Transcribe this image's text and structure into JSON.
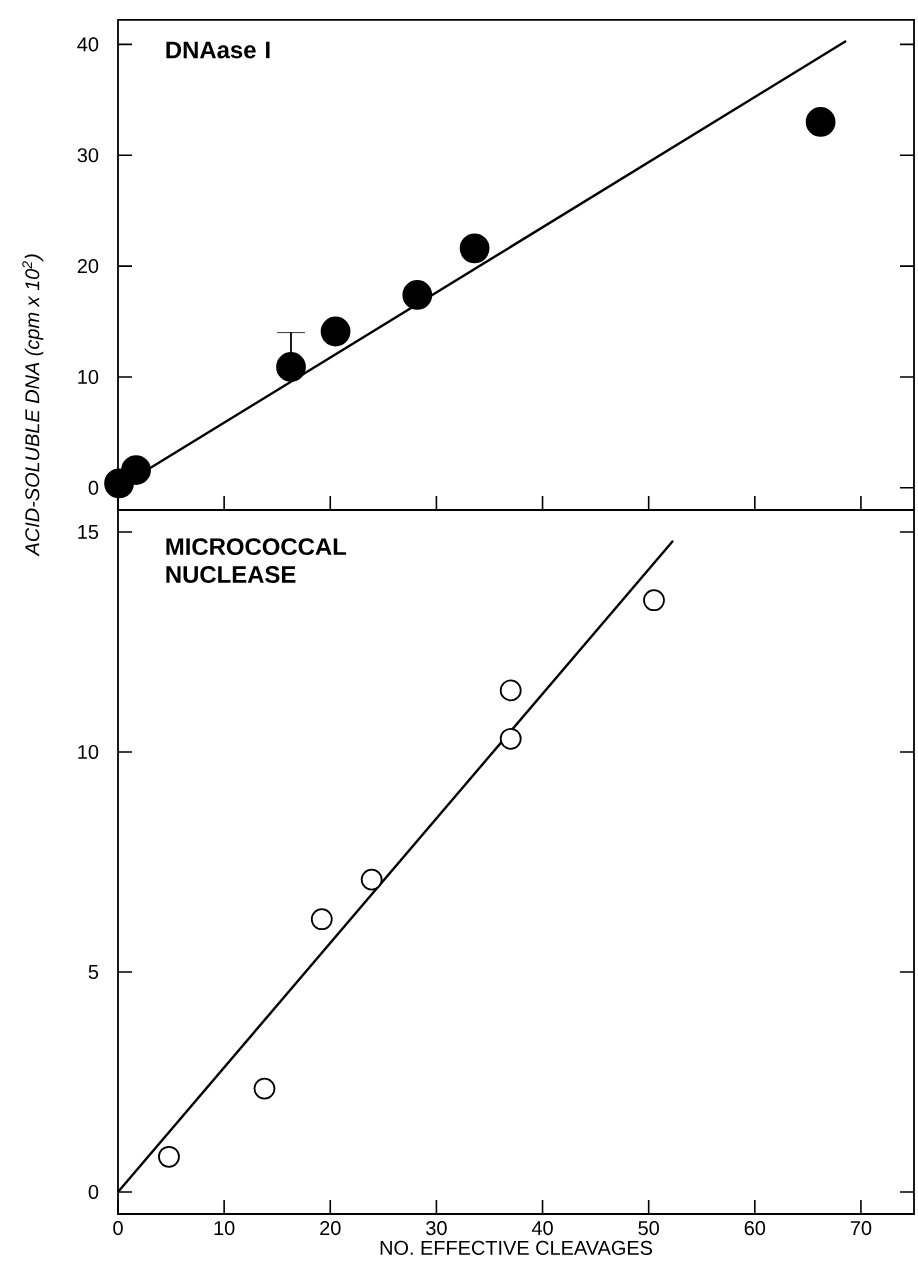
{
  "chart_data": [
    {
      "type": "scatter",
      "title": "DNAase I",
      "xlim": [
        0,
        75
      ],
      "xticks": [
        0,
        10,
        20,
        30,
        40,
        50,
        60,
        70
      ],
      "ylim": [
        -2,
        42.2
      ],
      "yticks": [
        0,
        10,
        20,
        30,
        40
      ],
      "tick_labels": "y",
      "series": [
        {
          "color": "#000000",
          "x": [
            0.1,
            1.7,
            16.3,
            20.5,
            28.2,
            33.6,
            66.2
          ],
          "values": [
            0.4,
            1.6,
            10.9,
            14.1,
            17.4,
            21.6,
            33.0
          ],
          "errors": [
            null,
            null,
            [
              10.9,
              14.0
            ],
            null,
            null,
            null,
            null
          ]
        },
        {
          "type": "line",
          "marker": "none",
          "color": "#000000",
          "x": [
            0,
            68.6
          ],
          "values": [
            0,
            40.3
          ]
        }
      ]
    },
    {
      "type": "scatter",
      "title": "MICROCOCCAL NUCLEASE",
      "xlabel": "NO. EFFECTIVE CLEAVAGES",
      "ylabel": "ACID-SOLUBLE DNA (cpm x 10$^{2}$)",
      "xlim": [
        0,
        75
      ],
      "xticks": [
        0,
        10,
        20,
        30,
        40,
        50,
        60,
        70
      ],
      "ylim": [
        -0.5,
        15.5
      ],
      "yticks": [
        0,
        5,
        10,
        15
      ],
      "series": [
        {
          "color": "#000000",
          "x": [
            4.8,
            13.8,
            19.2,
            23.9,
            37.0,
            37.0,
            50.5
          ],
          "values": [
            0.8,
            2.35,
            6.2,
            7.1,
            11.4,
            10.3,
            13.45
          ]
        },
        {
          "type": "line",
          "marker": "none",
          "color": "#000000",
          "x": [
            0,
            52.3
          ],
          "values": [
            0,
            14.8
          ]
        }
      ]
    }
  ]
}
